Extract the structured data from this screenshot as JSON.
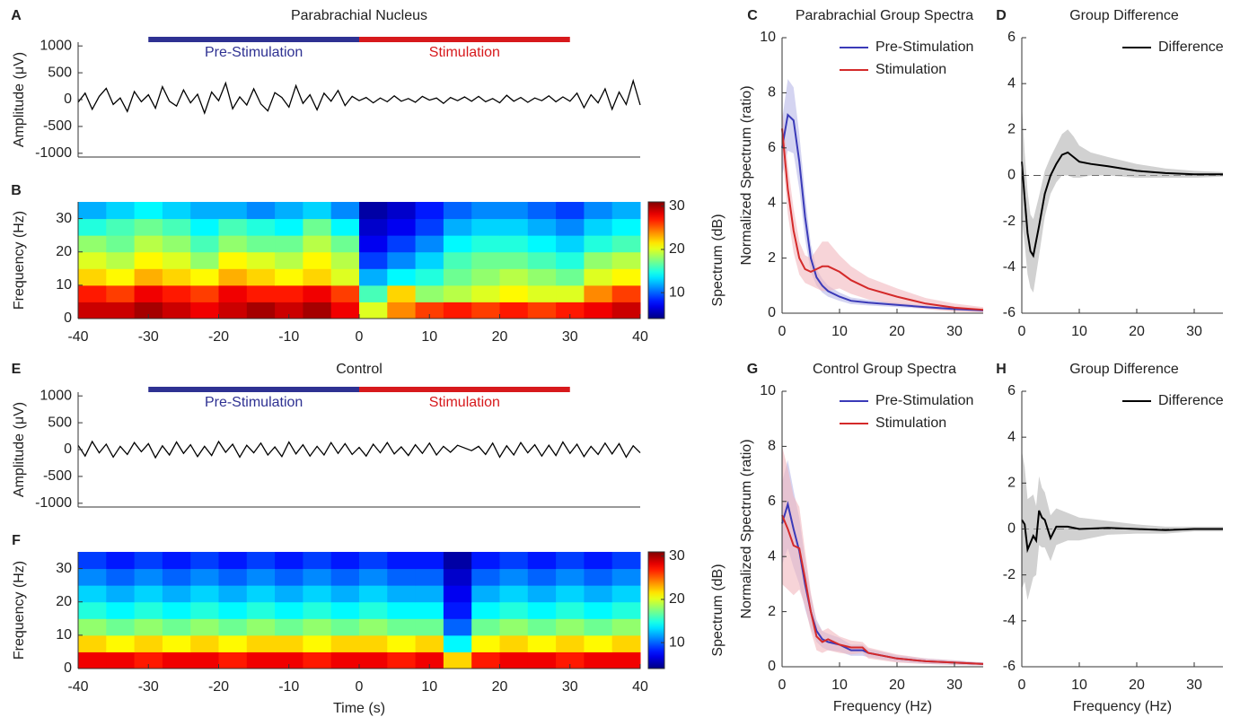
{
  "chart_data": [
    {
      "panel": "A",
      "type": "line",
      "title": "Parabrachial Nucleus",
      "ylabel": "Amplitude (μV)",
      "xlim": [
        -40,
        40
      ],
      "ylim": [
        -1070,
        1070
      ],
      "yticks": [
        -1000,
        -500,
        0,
        500,
        1000
      ],
      "color": "#000000",
      "x": [
        -40,
        -39,
        -38,
        -37,
        -36,
        -35,
        -34,
        -33,
        -32,
        -31,
        -30,
        -29,
        -28,
        -27,
        -26,
        -25,
        -24,
        -23,
        -22,
        -21,
        -20,
        -19,
        -18,
        -17,
        -16,
        -15,
        -14,
        -13,
        -12,
        -11,
        -10,
        -9,
        -8,
        -7,
        -6,
        -5,
        -4,
        -3,
        -2,
        -1,
        0,
        1,
        2,
        3,
        4,
        5,
        6,
        7,
        8,
        9,
        10,
        11,
        12,
        13,
        14,
        15,
        16,
        17,
        18,
        19,
        20,
        21,
        22,
        23,
        24,
        25,
        26,
        27,
        28,
        29,
        30,
        31,
        32,
        33,
        34,
        35,
        36,
        37,
        38,
        39,
        40
      ],
      "values": [
        -50,
        120,
        -180,
        60,
        210,
        -90,
        30,
        -220,
        150,
        -40,
        90,
        -160,
        240,
        -30,
        -120,
        180,
        -60,
        100,
        -250,
        140,
        -20,
        310,
        -170,
        50,
        -100,
        200,
        -80,
        -210,
        130,
        40,
        -140,
        260,
        -70,
        90,
        -190,
        120,
        -30,
        170,
        -110,
        60,
        -20,
        40,
        -60,
        30,
        -40,
        70,
        -30,
        20,
        -50,
        60,
        -10,
        30,
        -70,
        40,
        -20,
        50,
        -30,
        60,
        -40,
        20,
        -60,
        80,
        -30,
        40,
        -50,
        30,
        -20,
        70,
        -40,
        50,
        -30,
        120,
        -150,
        90,
        -60,
        200,
        -180,
        140,
        -90,
        350,
        -100
      ],
      "annotations": [
        {
          "text": "Pre-Stimulation",
          "x0": -30,
          "x1": 0,
          "color": "#2e3192"
        },
        {
          "text": "Stimulation",
          "x0": 0,
          "x1": 30,
          "color": "#d7191c"
        }
      ]
    },
    {
      "panel": "B",
      "type": "heatmap",
      "ylabel": "Frequency (Hz)",
      "xlim": [
        -40,
        40
      ],
      "ylim": [
        0,
        35
      ],
      "xticks": [
        -40,
        -30,
        -20,
        -10,
        0,
        10,
        20,
        30,
        40
      ],
      "yticks": [
        0,
        10,
        20,
        30
      ],
      "x": [
        -38,
        -34,
        -30,
        -26,
        -22,
        -18,
        -14,
        -10,
        -6,
        -2,
        2,
        6,
        10,
        14,
        18,
        22,
        26,
        30,
        34,
        38
      ],
      "y": [
        2.5,
        7.5,
        12.5,
        17.5,
        22.5,
        27.5,
        32.5
      ],
      "z": [
        [
          29,
          29,
          30,
          29,
          28,
          29,
          30,
          29,
          30,
          28,
          20,
          24,
          26,
          27,
          26,
          27,
          26,
          27,
          28,
          29
        ],
        [
          27,
          26,
          28,
          27,
          26,
          28,
          27,
          27,
          28,
          26,
          16,
          22,
          18,
          19,
          20,
          21,
          20,
          20,
          24,
          26
        ],
        [
          22,
          21,
          23,
          22,
          21,
          23,
          22,
          21,
          22,
          20,
          12,
          14,
          15,
          17,
          18,
          19,
          18,
          17,
          20,
          21
        ],
        [
          20,
          19,
          21,
          20,
          18,
          21,
          20,
          19,
          21,
          19,
          9,
          11,
          13,
          16,
          17,
          17,
          16,
          15,
          18,
          19
        ],
        [
          18,
          17,
          19,
          18,
          16,
          18,
          17,
          17,
          19,
          17,
          7,
          9,
          11,
          14,
          15,
          15,
          14,
          13,
          15,
          16
        ],
        [
          15,
          16,
          17,
          16,
          14,
          16,
          15,
          14,
          17,
          14,
          6,
          7,
          9,
          12,
          13,
          13,
          12,
          11,
          13,
          14
        ],
        [
          12,
          13,
          14,
          13,
          12,
          12,
          11,
          12,
          13,
          11,
          5,
          6,
          8,
          10,
          11,
          11,
          10,
          9,
          11,
          12
        ]
      ],
      "colorbar": {
        "clim": [
          4,
          31
        ],
        "ticks": [
          10,
          20,
          30
        ],
        "label": "Spectrum (dB)"
      }
    },
    {
      "panel": "C",
      "type": "line",
      "title": "Parabrachial Group Spectra",
      "ylabel": "Normalized Spectrum (ratio)",
      "xlim": [
        0,
        35
      ],
      "ylim": [
        0,
        10
      ],
      "xticks": [
        0,
        10,
        20,
        30
      ],
      "yticks": [
        0,
        2,
        4,
        6,
        8,
        10
      ],
      "legend": "upper right",
      "x": [
        0,
        1,
        2,
        3,
        4,
        5,
        6,
        7,
        8,
        10,
        12,
        15,
        20,
        25,
        30,
        35
      ],
      "series": [
        {
          "name": "Pre-Stimulation",
          "color": "#3a3ab8",
          "band_color": "#b8b8e8",
          "values": [
            6.0,
            7.2,
            7.0,
            5.5,
            3.5,
            2.0,
            1.3,
            1.0,
            0.8,
            0.6,
            0.45,
            0.38,
            0.3,
            0.22,
            0.15,
            0.1
          ],
          "error": [
            1.0,
            1.3,
            1.2,
            1.0,
            0.8,
            0.5,
            0.3,
            0.25,
            0.2,
            0.15,
            0.12,
            0.1,
            0.08,
            0.06,
            0.05,
            0.04
          ]
        },
        {
          "name": "Stimulation",
          "color": "#d42a2a",
          "band_color": "#f2b8be",
          "values": [
            6.7,
            4.5,
            3.0,
            2.0,
            1.6,
            1.5,
            1.6,
            1.7,
            1.7,
            1.5,
            1.2,
            0.9,
            0.6,
            0.35,
            0.2,
            0.12
          ],
          "error": [
            0.8,
            0.9,
            0.8,
            0.6,
            0.5,
            0.5,
            0.7,
            0.9,
            0.9,
            0.6,
            0.5,
            0.4,
            0.3,
            0.2,
            0.15,
            0.1
          ]
        }
      ]
    },
    {
      "panel": "D",
      "type": "line",
      "title": "Group Difference",
      "xlim": [
        0,
        35
      ],
      "ylim": [
        -6,
        6
      ],
      "xticks": [
        0,
        10,
        20,
        30
      ],
      "yticks": [
        -6,
        -4,
        -2,
        0,
        2,
        4,
        6
      ],
      "legend": "upper right",
      "zero_line": true,
      "x": [
        0,
        0.5,
        1,
        1.5,
        2,
        3,
        4,
        5,
        6,
        7,
        8,
        9,
        10,
        12,
        15,
        20,
        25,
        30,
        35
      ],
      "series": [
        {
          "name": "Difference",
          "color": "#000000",
          "band_color": "#b3b3b3",
          "values": [
            0.6,
            -1.0,
            -2.5,
            -3.3,
            -3.5,
            -2.2,
            -0.8,
            0.0,
            0.5,
            0.9,
            1.0,
            0.8,
            0.6,
            0.5,
            0.4,
            0.2,
            0.1,
            0.05,
            0.05
          ],
          "error": [
            2.5,
            2.0,
            1.8,
            1.6,
            1.6,
            1.3,
            1.0,
            0.8,
            0.8,
            0.9,
            1.0,
            0.9,
            0.7,
            0.5,
            0.4,
            0.3,
            0.2,
            0.15,
            0.1
          ]
        }
      ]
    },
    {
      "panel": "E",
      "type": "line",
      "title": "Control",
      "ylabel": "Amplitude (μV)",
      "xlim": [
        -40,
        40
      ],
      "ylim": [
        -1070,
        1070
      ],
      "yticks": [
        -1000,
        -500,
        0,
        500,
        1000
      ],
      "color": "#000000",
      "x": [
        -40,
        -39,
        -38,
        -37,
        -36,
        -35,
        -34,
        -33,
        -32,
        -31,
        -30,
        -29,
        -28,
        -27,
        -26,
        -25,
        -24,
        -23,
        -22,
        -21,
        -20,
        -19,
        -18,
        -17,
        -16,
        -15,
        -14,
        -13,
        -12,
        -11,
        -10,
        -9,
        -8,
        -7,
        -6,
        -5,
        -4,
        -3,
        -2,
        -1,
        0,
        1,
        2,
        3,
        4,
        5,
        6,
        7,
        8,
        9,
        10,
        11,
        12,
        13,
        14,
        15,
        16,
        17,
        18,
        19,
        20,
        21,
        22,
        23,
        24,
        25,
        26,
        27,
        28,
        29,
        30,
        31,
        32,
        33,
        34,
        35,
        36,
        37,
        38,
        39,
        40
      ],
      "values": [
        80,
        -120,
        150,
        -60,
        100,
        -140,
        60,
        -90,
        130,
        -40,
        110,
        -150,
        70,
        -100,
        140,
        -70,
        90,
        -130,
        60,
        -110,
        150,
        -50,
        100,
        -140,
        80,
        -60,
        120,
        -100,
        50,
        -130,
        140,
        -80,
        90,
        -120,
        60,
        -100,
        130,
        -70,
        110,
        -90,
        40,
        -120,
        100,
        -60,
        130,
        -80,
        50,
        -110,
        90,
        -70,
        120,
        -100,
        60,
        -50,
        80,
        30,
        -20,
        60,
        -90,
        120,
        -140,
        70,
        -100,
        130,
        -60,
        90,
        -120,
        80,
        -110,
        140,
        -70,
        100,
        -130,
        60,
        -90,
        120,
        -80,
        110,
        -140,
        70,
        -60
      ],
      "annotations": [
        {
          "text": "Pre-Stimulation",
          "x0": -30,
          "x1": 0,
          "color": "#2e3192"
        },
        {
          "text": "Stimulation",
          "x0": 0,
          "x1": 30,
          "color": "#d7191c"
        }
      ]
    },
    {
      "panel": "F",
      "type": "heatmap",
      "ylabel": "Frequency (Hz)",
      "xlabel": "Time (s)",
      "xlim": [
        -40,
        40
      ],
      "ylim": [
        0,
        35
      ],
      "xticks": [
        -40,
        -30,
        -20,
        -10,
        0,
        10,
        20,
        30,
        40
      ],
      "yticks": [
        0,
        10,
        20,
        30
      ],
      "x": [
        -38,
        -34,
        -30,
        -26,
        -22,
        -18,
        -14,
        -10,
        -6,
        -2,
        2,
        6,
        10,
        14,
        18,
        22,
        26,
        30,
        34,
        38
      ],
      "y": [
        2.5,
        7.5,
        12.5,
        17.5,
        22.5,
        27.5,
        32.5
      ],
      "z": [
        [
          28,
          28,
          27,
          28,
          28,
          27,
          28,
          28,
          27,
          28,
          28,
          27,
          28,
          22,
          27,
          28,
          28,
          27,
          28,
          28
        ],
        [
          22,
          21,
          22,
          21,
          22,
          21,
          22,
          22,
          21,
          22,
          22,
          21,
          22,
          14,
          21,
          22,
          21,
          22,
          21,
          22
        ],
        [
          18,
          17,
          18,
          17,
          18,
          17,
          18,
          17,
          18,
          17,
          18,
          17,
          17,
          10,
          17,
          18,
          17,
          18,
          17,
          18
        ],
        [
          15,
          14,
          15,
          14,
          15,
          14,
          15,
          14,
          15,
          14,
          15,
          14,
          14,
          8,
          14,
          15,
          14,
          15,
          14,
          15
        ],
        [
          13,
          12,
          13,
          12,
          13,
          12,
          13,
          12,
          13,
          12,
          13,
          12,
          12,
          7,
          12,
          13,
          12,
          13,
          12,
          13
        ],
        [
          11,
          10,
          11,
          10,
          11,
          10,
          11,
          10,
          11,
          10,
          11,
          10,
          10,
          6,
          10,
          11,
          10,
          11,
          10,
          11
        ],
        [
          9,
          8,
          9,
          8,
          9,
          8,
          9,
          8,
          9,
          8,
          9,
          8,
          8,
          5,
          8,
          9,
          8,
          9,
          8,
          9
        ]
      ],
      "colorbar": {
        "clim": [
          4,
          31
        ],
        "ticks": [
          10,
          20,
          30
        ],
        "label": "Spectrum (dB)"
      }
    },
    {
      "panel": "G",
      "type": "line",
      "title": "Control Group Spectra",
      "ylabel": "Normalized Spectrum (ratio)",
      "xlabel": "Frequency (Hz)",
      "xlim": [
        0,
        35
      ],
      "ylim": [
        0,
        10
      ],
      "xticks": [
        0,
        10,
        20,
        30
      ],
      "yticks": [
        0,
        2,
        4,
        6,
        8,
        10
      ],
      "legend": "upper right",
      "x": [
        0,
        1,
        2,
        3,
        4,
        5,
        6,
        7,
        8,
        10,
        12,
        14,
        15,
        20,
        25,
        30,
        35
      ],
      "series": [
        {
          "name": "Pre-Stimulation",
          "color": "#3a3ab8",
          "band_color": "#b8b8e8",
          "values": [
            5.2,
            5.9,
            5.0,
            4.2,
            3.0,
            2.0,
            1.3,
            1.0,
            0.9,
            0.8,
            0.6,
            0.6,
            0.5,
            0.3,
            0.2,
            0.15,
            0.1
          ],
          "error": [
            1.5,
            1.6,
            1.4,
            1.2,
            0.9,
            0.6,
            0.4,
            0.3,
            0.3,
            0.25,
            0.2,
            0.2,
            0.15,
            0.12,
            0.1,
            0.08,
            0.05
          ]
        },
        {
          "name": "Stimulation",
          "color": "#d42a2a",
          "band_color": "#f2b8be",
          "values": [
            5.5,
            5.0,
            4.4,
            4.3,
            3.2,
            2.0,
            1.1,
            0.9,
            1.0,
            0.8,
            0.7,
            0.7,
            0.5,
            0.3,
            0.2,
            0.15,
            0.1
          ],
          "error": [
            2.5,
            2.2,
            1.8,
            1.5,
            1.0,
            0.7,
            0.5,
            0.4,
            0.4,
            0.3,
            0.25,
            0.2,
            0.2,
            0.15,
            0.1,
            0.08,
            0.05
          ]
        }
      ]
    },
    {
      "panel": "H",
      "type": "line",
      "title": "Group Difference",
      "xlabel": "Frequency (Hz)",
      "xlim": [
        0,
        35
      ],
      "ylim": [
        -6,
        6
      ],
      "xticks": [
        0,
        10,
        20,
        30
      ],
      "yticks": [
        -6,
        -4,
        -2,
        0,
        2,
        4,
        6
      ],
      "legend": "upper right",
      "zero_line": true,
      "x": [
        0,
        0.5,
        1,
        1.5,
        2,
        2.5,
        3,
        3.5,
        4,
        5,
        6,
        8,
        10,
        15,
        20,
        25,
        30,
        35
      ],
      "series": [
        {
          "name": "Difference",
          "color": "#000000",
          "band_color": "#b3b3b3",
          "values": [
            0.4,
            0.2,
            -0.9,
            -0.6,
            -0.3,
            -0.5,
            0.8,
            0.5,
            0.4,
            -0.4,
            0.1,
            0.1,
            0.0,
            0.05,
            0.0,
            -0.05,
            0.0,
            0.0
          ],
          "error": [
            3.0,
            2.5,
            2.2,
            2.0,
            1.8,
            1.5,
            1.5,
            1.3,
            1.2,
            1.0,
            0.8,
            0.6,
            0.5,
            0.3,
            0.2,
            0.15,
            0.1,
            0.1
          ]
        }
      ]
    }
  ]
}
